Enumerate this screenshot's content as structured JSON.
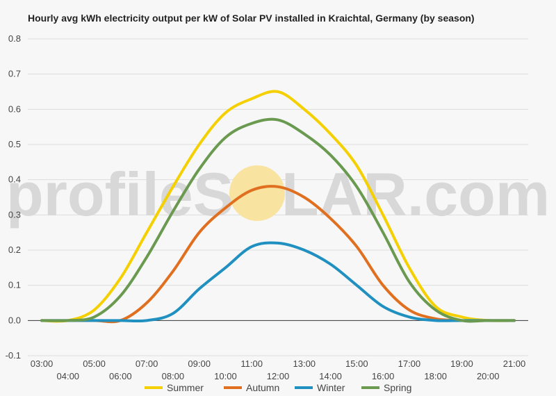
{
  "chart_data": {
    "type": "line",
    "title": "Hourly avg kWh electricity output per kW of Solar PV installed in Kraichtal, Germany (by season)",
    "xlabel": "",
    "ylabel": "",
    "x": [
      "03:00",
      "04:00",
      "05:00",
      "06:00",
      "07:00",
      "08:00",
      "09:00",
      "10:00",
      "11:00",
      "12:00",
      "13:00",
      "14:00",
      "15:00",
      "16:00",
      "17:00",
      "18:00",
      "19:00",
      "20:00",
      "21:00"
    ],
    "ylim": [
      -0.1,
      0.8
    ],
    "yticks": [
      "-0.1",
      "0.0",
      "0.1",
      "0.2",
      "0.3",
      "0.4",
      "0.5",
      "0.6",
      "0.7",
      "0.8"
    ],
    "grid": true,
    "legend": "bottom",
    "series": [
      {
        "name": "Summer",
        "color": "#f5d000",
        "values": [
          0.0,
          0.0,
          0.03,
          0.12,
          0.25,
          0.38,
          0.5,
          0.59,
          0.63,
          0.65,
          0.6,
          0.53,
          0.44,
          0.3,
          0.15,
          0.04,
          0.01,
          0.0,
          0.0
        ]
      },
      {
        "name": "Autumn",
        "color": "#e07020",
        "values": [
          0.0,
          0.0,
          0.0,
          0.0,
          0.05,
          0.14,
          0.25,
          0.32,
          0.37,
          0.38,
          0.35,
          0.29,
          0.21,
          0.1,
          0.03,
          0.005,
          0.0,
          0.0,
          0.0
        ]
      },
      {
        "name": "Winter",
        "color": "#2090c0",
        "values": [
          0.0,
          0.0,
          0.0,
          0.0,
          0.0,
          0.02,
          0.09,
          0.15,
          0.21,
          0.22,
          0.2,
          0.16,
          0.1,
          0.04,
          0.01,
          0.0,
          0.0,
          0.0,
          0.0
        ]
      },
      {
        "name": "Spring",
        "color": "#6a9a50",
        "values": [
          0.0,
          0.0,
          0.01,
          0.07,
          0.18,
          0.31,
          0.43,
          0.52,
          0.56,
          0.57,
          0.53,
          0.47,
          0.38,
          0.25,
          0.11,
          0.03,
          0.0,
          0.0,
          0.0
        ]
      }
    ]
  },
  "watermark": {
    "left": "profileS",
    "sun_letter": "O",
    "right": "LAR.com",
    "sun_color": "#f9e3a0"
  }
}
